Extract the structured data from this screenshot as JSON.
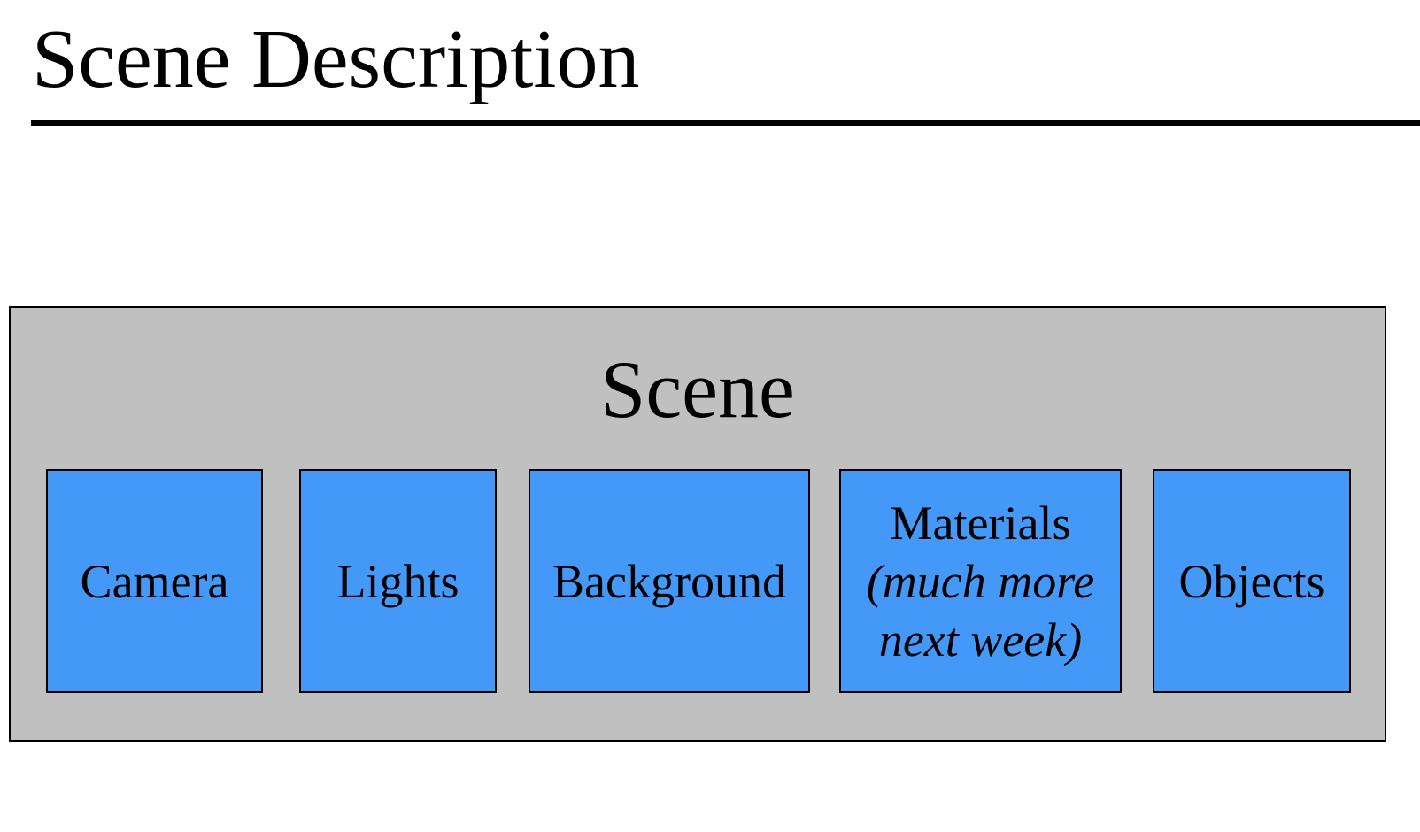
{
  "slide": {
    "title": "Scene Description"
  },
  "diagram": {
    "container_label": "Scene",
    "components": [
      {
        "label": "Camera"
      },
      {
        "label": "Lights"
      },
      {
        "label": "Background"
      },
      {
        "label": "Materials",
        "note_line1": "(much more",
        "note_line2": "next week)"
      },
      {
        "label": "Objects"
      }
    ],
    "colors": {
      "container_fill": "#c0c0c0",
      "component_fill": "#4499f8",
      "border": "#000000"
    }
  }
}
